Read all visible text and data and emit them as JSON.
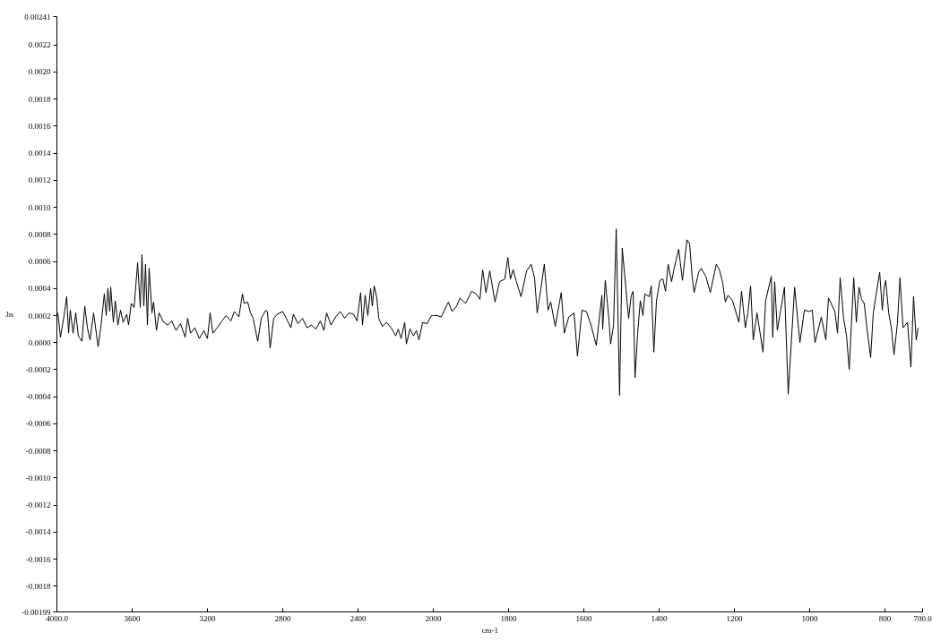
{
  "chart_data": [
    {
      "type": "line",
      "ylabel": ".bs",
      "xlim": [
        4000,
        2000
      ],
      "xticks": [
        {
          "value": 4000,
          "label": "4000.0"
        },
        3600,
        3200,
        2800,
        2400,
        2000
      ],
      "ylim": [
        -0.00199,
        0.00241
      ],
      "yticks": [
        0.00241,
        0.0022,
        {
          "value": 0.002,
          "label": "0.0020"
        },
        0.0018,
        0.0016,
        0.0014,
        0.0012,
        {
          "value": 0.001,
          "label": "0.0010"
        },
        0.0008,
        0.0006,
        0.0004,
        0.0002,
        {
          "value": 0,
          "label": "0.0000"
        },
        -0.0002,
        -0.0004,
        -0.0006,
        -0.0008,
        {
          "value": -0.001,
          "label": "-0.0010"
        },
        -0.0012,
        -0.0014,
        -0.0016,
        -0.0018,
        -0.00199
      ],
      "x": [
        3995,
        3981,
        3962,
        3948,
        3938,
        3929,
        3914,
        3900,
        3886,
        3867,
        3852,
        3838,
        3824,
        3805,
        3781,
        3767,
        3748,
        3738,
        3729,
        3719,
        3714,
        3700,
        3690,
        3676,
        3662,
        3648,
        3629,
        3619,
        3605,
        3590,
        3571,
        3557,
        3548,
        3538,
        3529,
        3519,
        3510,
        3495,
        3486,
        3471,
        3457,
        3433,
        3410,
        3390,
        3367,
        3343,
        3319,
        3305,
        3290,
        3267,
        3243,
        3219,
        3200,
        3186,
        3171,
        3148,
        3124,
        3100,
        3076,
        3057,
        3033,
        3014,
        3005,
        2986,
        2971,
        2957,
        2933,
        2914,
        2890,
        2881,
        2867,
        2848,
        2829,
        2800,
        2781,
        2757,
        2743,
        2719,
        2695,
        2671,
        2648,
        2624,
        2600,
        2581,
        2567,
        2543,
        2519,
        2495,
        2471,
        2448,
        2424,
        2405,
        2386,
        2376,
        2362,
        2348,
        2333,
        2324,
        2314,
        2300,
        2290,
        2271,
        2248,
        2224,
        2200,
        2186,
        2171,
        2152,
        2143,
        2124,
        2105,
        2090,
        2076,
        2057,
        2033,
        2010,
        2000
      ],
      "series": [
        {
          "color": "#000000",
          "values": [
            0.00022,
            4e-05,
            0.0002,
            0.00034,
            7e-05,
            0.00024,
            7e-05,
            0.00022,
            5e-05,
            1e-05,
            0.00027,
            0.00011,
            2e-05,
            0.00022,
            -3e-05,
            0.00011,
            0.00036,
            0.0002,
            0.0004,
            0.00023,
            0.00041,
            0.00015,
            0.00031,
            0.00013,
            0.00024,
            0.00015,
            0.00021,
            0.00013,
            0.00029,
            0.00026,
            0.00059,
            0.00026,
            0.00065,
            0.00027,
            0.00058,
            0.00013,
            0.00055,
            0.00022,
            0.0003,
            9e-05,
            0.00022,
            0.00015,
            0.00013,
            0.00016,
            9e-05,
            0.00014,
            4e-05,
            0.00018,
            7e-05,
            0.00011,
            3e-05,
            9e-05,
            3e-05,
            0.00022,
            7e-05,
            0.00011,
            0.00016,
            0.0002,
            0.00016,
            0.00023,
            0.00019,
            0.00036,
            0.00029,
            0.0003,
            0.00022,
            0.00018,
            1e-05,
            0.00018,
            0.00024,
            0.00023,
            -4e-05,
            0.00018,
            0.00021,
            0.00023,
            0.00018,
            0.00011,
            0.00021,
            0.00014,
            0.00018,
            0.00011,
            0.00013,
            0.0001,
            0.00016,
            9e-05,
            0.00022,
            0.00013,
            0.00019,
            0.00023,
            0.00018,
            0.00022,
            0.00021,
            0.00016,
            0.00037,
            0.00013,
            0.00035,
            0.0002,
            0.0004,
            0.00027,
            0.00042,
            0.00033,
            0.00018,
            0.00012,
            0.00015,
            0.00011,
            5e-05,
            0.0001,
            3e-05,
            0.00015,
            -1e-05,
            0.0001,
            5e-05,
            9e-05,
            2e-05,
            0.00015,
            0.00014,
            0.0002,
            0.0002
          ]
        }
      ]
    },
    {
      "type": "line",
      "xlabel": "cm-1",
      "tick_labels": "x",
      "xlim": [
        2000,
        700
      ],
      "xticks": [
        1800,
        1600,
        1400,
        1200,
        1000,
        800,
        {
          "value": 700,
          "label": "700.0"
        }
      ],
      "ylim": [
        -0.00199,
        0.00241
      ],
      "x": [
        2000,
        1990,
        1979,
        1960,
        1950,
        1938,
        1929,
        1914,
        1898,
        1886,
        1876,
        1869,
        1860,
        1850,
        1836,
        1824,
        1810,
        1802,
        1795,
        1788,
        1779,
        1767,
        1752,
        1740,
        1731,
        1724,
        1714,
        1705,
        1695,
        1688,
        1676,
        1660,
        1652,
        1640,
        1626,
        1617,
        1605,
        1593,
        1581,
        1567,
        1552,
        1550,
        1543,
        1533,
        1529,
        1521,
        1514,
        1505,
        1498,
        1481,
        1474,
        1469,
        1464,
        1457,
        1450,
        1443,
        1438,
        1426,
        1421,
        1414,
        1407,
        1398,
        1390,
        1383,
        1376,
        1367,
        1360,
        1348,
        1338,
        1326,
        1319,
        1312,
        1307,
        1295,
        1288,
        1276,
        1264,
        1248,
        1240,
        1231,
        1224,
        1217,
        1205,
        1188,
        1181,
        1171,
        1164,
        1157,
        1150,
        1140,
        1124,
        1117,
        1102,
        1098,
        1093,
        1086,
        1074,
        1067,
        1057,
        1040,
        1026,
        1014,
        1002,
        993,
        986,
        969,
        957,
        950,
        943,
        933,
        926,
        919,
        910,
        902,
        895,
        883,
        876,
        869,
        862,
        855,
        848,
        838,
        831,
        826,
        814,
        807,
        802,
        798,
        790,
        783,
        776,
        767,
        760,
        752,
        740,
        731,
        724,
        717,
        712
      ],
      "series": [
        {
          "color": "#000000",
          "values": [
            0.0002,
            0.0002,
            0.00019,
            0.0003,
            0.00023,
            0.00027,
            0.00033,
            0.00029,
            0.00038,
            0.00036,
            0.00032,
            0.00054,
            0.00037,
            0.00053,
            0.0003,
            0.00045,
            0.00047,
            0.00063,
            0.00047,
            0.00054,
            0.00045,
            0.00034,
            0.00053,
            0.00058,
            0.00048,
            0.00022,
            0.0004,
            0.00058,
            0.00024,
            0.0003,
            0.00012,
            0.00037,
            7e-05,
            0.00019,
            0.00022,
            -0.0001,
            0.00024,
            0.00023,
            0.00013,
            -2e-05,
            0.00035,
            0.0001,
            0.00046,
            0.00016,
            -1e-05,
            0.00013,
            0.00084,
            -0.00039,
            0.0007,
            0.00018,
            0.00035,
            0.00038,
            -0.00026,
            7e-05,
            0.00031,
            0.0002,
            0.00036,
            0.00034,
            0.00042,
            -7e-05,
            0.00031,
            0.00046,
            0.00047,
            0.00038,
            0.00058,
            0.00045,
            0.00055,
            0.00069,
            0.00046,
            0.00076,
            0.00073,
            0.00048,
            0.00037,
            0.00052,
            0.00055,
            0.00049,
            0.00037,
            0.00058,
            0.00054,
            0.00044,
            0.0003,
            0.00035,
            0.00031,
            0.00015,
            0.00038,
            0.00011,
            0.00022,
            0.00042,
            2e-05,
            0.00022,
            -7e-05,
            0.00031,
            0.00049,
            4e-05,
            0.00045,
            9e-05,
            0.00029,
            0.00041,
            -0.00038,
            0.00041,
            0.0,
            0.00024,
            0.00023,
            0.00024,
            0.0,
            0.00019,
            2e-05,
            0.00033,
            0.00029,
            0.00023,
            7e-05,
            0.00048,
            0.00018,
            5e-05,
            -0.0002,
            0.00048,
            0.00015,
            0.00041,
            0.00032,
            0.00029,
            0.00011,
            -0.00011,
            0.00022,
            0.00031,
            0.00052,
            0.00024,
            0.00041,
            0.00046,
            0.00022,
            0.00011,
            -9e-05,
            0.00014,
            0.00048,
            0.00011,
            0.00015,
            -0.00018,
            0.00034,
            2e-05,
            0.00011
          ]
        }
      ]
    }
  ]
}
